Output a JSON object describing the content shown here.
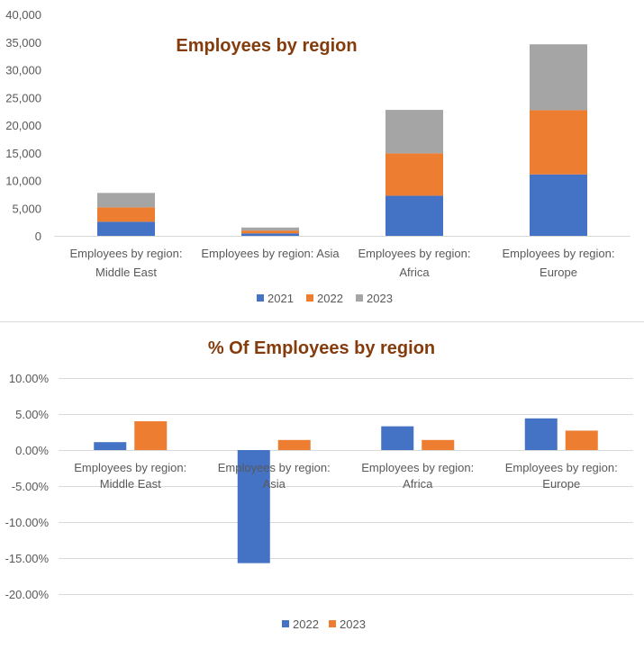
{
  "chart_data": [
    {
      "type": "bar",
      "stacked": true,
      "title": "Employees by region",
      "categories": [
        [
          "Employees by region:",
          "Middle East"
        ],
        [
          "Employees by region: Asia"
        ],
        [
          "Employees by region:",
          "Africa"
        ],
        [
          "Employees by region:",
          "Europe"
        ]
      ],
      "series": [
        {
          "name": "2021",
          "color": "#4472c4",
          "values": [
            2550,
            450,
            7250,
            11100
          ]
        },
        {
          "name": "2022",
          "color": "#ed7d31",
          "values": [
            2600,
            500,
            7650,
            11600
          ]
        },
        {
          "name": "2023",
          "color": "#a5a5a5",
          "values": [
            2600,
            550,
            7850,
            11900
          ]
        }
      ],
      "ylim": [
        0,
        40000
      ],
      "yticks": [
        0,
        5000,
        10000,
        15000,
        20000,
        25000,
        30000,
        35000,
        40000
      ],
      "ytick_labels": [
        "0",
        "5,000",
        "10,000",
        "15,000",
        "20,000",
        "25,000",
        "30,000",
        "35,000",
        "40,000"
      ],
      "grid": false,
      "legend": "bottom"
    },
    {
      "type": "bar",
      "title": "% Of Employees by region",
      "categories": [
        [
          "Employees by region:",
          "Middle East"
        ],
        [
          "Employees by region:",
          "Asia"
        ],
        [
          "Employees by region:",
          "Africa"
        ],
        [
          "Employees by region:",
          "Europe"
        ]
      ],
      "series": [
        {
          "name": "2022",
          "color": "#4472c4",
          "values": [
            1.1,
            -15.7,
            3.3,
            4.4
          ]
        },
        {
          "name": "2023",
          "color": "#ed7d31",
          "values": [
            4.0,
            1.4,
            1.4,
            2.7
          ]
        }
      ],
      "ylim": [
        -20,
        10
      ],
      "yticks": [
        -20,
        -15,
        -10,
        -5,
        0,
        5,
        10
      ],
      "ytick_labels": [
        "-20.00%",
        "-15.00%",
        "-10.00%",
        "-5.00%",
        "0.00%",
        "5.00%",
        "10.00%"
      ],
      "grid": true,
      "legend": "bottom"
    }
  ]
}
